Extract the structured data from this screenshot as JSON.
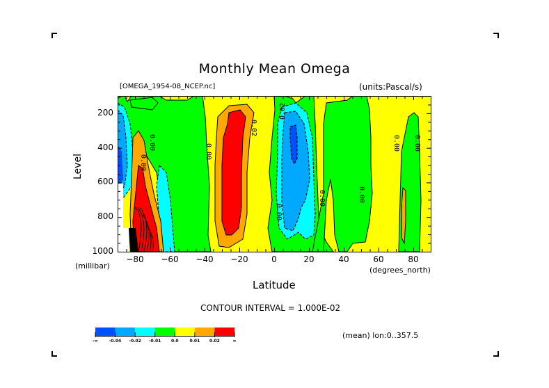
{
  "page": {
    "title": "Monthly Mean Omega",
    "file_label": "[OMEGA_1954-08_NCEP.nc]",
    "units_label": "(units:Pascal/s)",
    "contour_interval_label": "CONTOUR INTERVAL = 1.000E-02",
    "mean_label": "(mean) lon:0..357.5"
  },
  "chart_data": {
    "type": "heatmap",
    "subtype": "filled-contour",
    "title": "Monthly Mean Omega",
    "variable": "Omega",
    "units": "Pascal/s",
    "xlabel": "Latitude",
    "x_unit_label": "(degrees_north)",
    "ylabel": "Level",
    "y_unit_label": "(millibar)",
    "xlim": [
      -90,
      90
    ],
    "ylim": [
      1000,
      100
    ],
    "y_inverted": true,
    "x_ticks": [
      -80,
      -60,
      -40,
      -20,
      0,
      20,
      40,
      60,
      80
    ],
    "x_tick_labels": [
      "-80",
      "-60",
      "-40",
      "-20",
      "0",
      "20",
      "40",
      "60",
      "80"
    ],
    "y_ticks": [
      200,
      400,
      600,
      800,
      1000
    ],
    "y_tick_labels": [
      "200",
      "400",
      "600",
      "800",
      "1000"
    ],
    "contour_interval": 0.01,
    "contour_labels": [
      "0.00",
      "0.00",
      "0.02",
      "0.02",
      "0.00",
      "0.00",
      "0.00",
      "0.00",
      "0.00",
      "0.00"
    ],
    "colorbar": {
      "bins": [
        {
          "range": [
            "-inf",
            -0.04
          ],
          "color": "#0050ff"
        },
        {
          "range": [
            -0.04,
            -0.02
          ],
          "color": "#00a8ff"
        },
        {
          "range": [
            -0.02,
            -0.01
          ],
          "color": "#00ffff"
        },
        {
          "range": [
            -0.01,
            0.0
          ],
          "color": "#00ff00"
        },
        {
          "range": [
            0.0,
            0.01
          ],
          "color": "#ffff00"
        },
        {
          "range": [
            0.01,
            0.02
          ],
          "color": "#ffa800"
        },
        {
          "range": [
            0.02,
            "inf"
          ],
          "color": "#ff0000"
        }
      ],
      "tick_labels": [
        "-∞",
        "-0.04",
        "-0.02",
        "-0.01",
        "0.0",
        "0.01",
        "0.02",
        "∞"
      ]
    },
    "features": [
      {
        "description": "Strong subsidence (positive omega, red) core",
        "lat_range": [
          -30,
          -15
        ],
        "level_range": [
          250,
          900
        ]
      },
      {
        "description": "Strong ascent (negative omega, blue) core",
        "lat_range": [
          5,
          20
        ],
        "level_range": [
          250,
          850
        ],
        "min_value_approx": -0.04
      },
      {
        "description": "Antarctic strong positive with dense contours",
        "lat_range": [
          -85,
          -65
        ],
        "level_range": [
          450,
          1000
        ]
      },
      {
        "description": "Southern high-latitude ascent (blue)",
        "lat_range": [
          -90,
          -85
        ],
        "level_range": [
          150,
          700
        ]
      },
      {
        "description": "Missing data (below ground) region",
        "lat_range": [
          -90,
          -80
        ],
        "level_range": [
          600,
          1000
        ]
      }
    ]
  }
}
